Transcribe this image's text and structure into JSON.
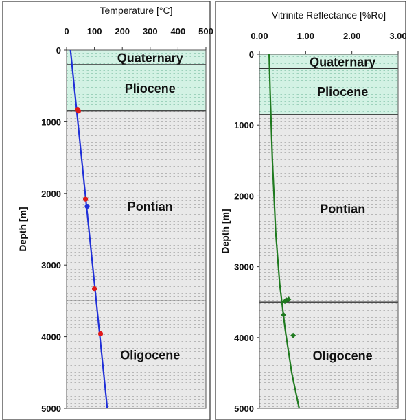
{
  "chart_data": [
    {
      "type": "line",
      "title": "",
      "xlabel": "Temperature [°C]",
      "ylabel": "Depth [m]",
      "x_ticks": [
        "0",
        "100",
        "200",
        "300",
        "400",
        "500"
      ],
      "y_ticks": [
        "0",
        "1000",
        "2000",
        "3000",
        "4000",
        "5000"
      ],
      "xlim": [
        0,
        500
      ],
      "ylim": [
        0,
        5000
      ],
      "y_inverted": true,
      "grid": false,
      "series": [
        {
          "name": "",
          "color": "#1f2fd8",
          "x": [
            14,
            146
          ],
          "y": [
            0,
            5000
          ]
        }
      ],
      "points": [
        {
          "x": 40,
          "y": 830,
          "color": "#e01818"
        },
        {
          "x": 43,
          "y": 850,
          "color": "#e01818"
        },
        {
          "x": 68,
          "y": 2080,
          "color": "#e01818"
        },
        {
          "x": 74,
          "y": 2180,
          "color": "#1f2fd8"
        },
        {
          "x": 100,
          "y": 3330,
          "color": "#e01818"
        },
        {
          "x": 122,
          "y": 3960,
          "color": "#e01818"
        }
      ],
      "units": [
        {
          "name": "Quaternary",
          "top": 0,
          "bottom": 200,
          "fill": "#cdeee0"
        },
        {
          "name": "Pliocene",
          "top": 200,
          "bottom": 850,
          "fill": "#cdeee0"
        },
        {
          "name": "Pontian",
          "top": 850,
          "bottom": 3500,
          "fill": "#e6e6e6"
        },
        {
          "name": "Oligocene",
          "top": 3500,
          "bottom": 5000,
          "fill": "#e6e6e6"
        }
      ]
    },
    {
      "type": "line",
      "title": "",
      "xlabel": "Vitrinite Reflectance [%Ro]",
      "ylabel": "",
      "x_ticks": [
        "0.00",
        "1.00",
        "2.00",
        "3.00"
      ],
      "y_ticks": [
        "0",
        "1000",
        "2000",
        "3000",
        "4000",
        "5000"
      ],
      "xlim": [
        0,
        3
      ],
      "ylim": [
        0,
        5000
      ],
      "y_inverted": true,
      "grid": false,
      "series": [
        {
          "name": "",
          "color": "#1f7a1f",
          "x": [
            0.21,
            0.23,
            0.28,
            0.35,
            0.44,
            0.56,
            0.7,
            0.86
          ],
          "y": [
            0,
            500,
            1500,
            2500,
            3250,
            3900,
            4500,
            5000
          ]
        }
      ],
      "points": [
        {
          "x": 0.55,
          "y": 3490,
          "color": "#1f7a1f"
        },
        {
          "x": 0.58,
          "y": 3470,
          "color": "#1f7a1f"
        },
        {
          "x": 0.63,
          "y": 3460,
          "color": "#1f7a1f"
        },
        {
          "x": 0.52,
          "y": 3680,
          "color": "#1f7a1f"
        },
        {
          "x": 0.73,
          "y": 3970,
          "color": "#1f7a1f"
        }
      ],
      "units": [
        {
          "name": "Quaternary",
          "top": 0,
          "bottom": 200,
          "fill": "#cdeee0"
        },
        {
          "name": "Pliocene",
          "top": 200,
          "bottom": 850,
          "fill": "#cdeee0"
        },
        {
          "name": "Pontian",
          "top": 850,
          "bottom": 3500,
          "fill": "#e6e6e6"
        },
        {
          "name": "Oligocene",
          "top": 3500,
          "bottom": 5000,
          "fill": "#e6e6e6"
        }
      ]
    }
  ]
}
